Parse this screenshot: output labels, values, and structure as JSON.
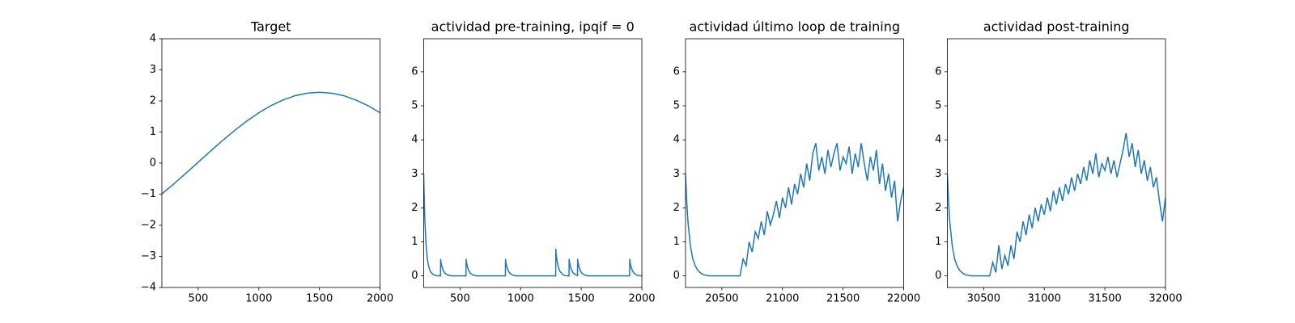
{
  "chart_data": [
    {
      "type": "line",
      "title": "Target",
      "color": "#1f77b4",
      "x": [
        200,
        300,
        400,
        500,
        600,
        700,
        800,
        900,
        1000,
        1100,
        1200,
        1300,
        1400,
        1500,
        1600,
        1700,
        1800,
        1900,
        2000
      ],
      "values": [
        -0.99,
        -0.665,
        -0.32,
        0.03,
        0.38,
        0.725,
        1.05,
        1.35,
        1.62,
        1.85,
        2.03,
        2.17,
        2.25,
        2.28,
        2.25,
        2.17,
        2.03,
        1.85,
        1.62
      ],
      "xlim": [
        200,
        2000
      ],
      "xticks": [
        500,
        1000,
        1500,
        2000
      ],
      "ylim": [
        -4,
        4
      ],
      "yticks": [
        {
          "value": -4,
          "label": "−4"
        },
        {
          "value": -3,
          "label": "−3"
        },
        {
          "value": -2,
          "label": "−2"
        },
        {
          "value": -1,
          "label": "−1"
        },
        0,
        1,
        2,
        3,
        4
      ]
    },
    {
      "type": "line",
      "title": "actividad pre-training, ipqif = 0",
      "color": "#1f77b4",
      "x": [
        200,
        205,
        210,
        220,
        230,
        240,
        250,
        260,
        280,
        300,
        330,
        339,
        340,
        342,
        350,
        360,
        375,
        400,
        430,
        549,
        550,
        552,
        560,
        570,
        585,
        610,
        640,
        874,
        875,
        877,
        885,
        895,
        910,
        935,
        965,
        1289,
        1290,
        1292,
        1300,
        1310,
        1325,
        1350,
        1380,
        1399,
        1400,
        1402,
        1410,
        1420,
        1435,
        1460,
        1469,
        1470,
        1472,
        1480,
        1490,
        1505,
        1530,
        1560,
        1899,
        1900,
        1902,
        1910,
        1920,
        1935,
        1960,
        1990,
        2000
      ],
      "values": [
        3.0,
        2.2,
        1.6,
        0.9,
        0.5,
        0.3,
        0.17,
        0.1,
        0.04,
        0.01,
        0,
        0,
        0.5,
        0.42,
        0.28,
        0.17,
        0.08,
        0.02,
        0,
        0,
        0.5,
        0.42,
        0.28,
        0.17,
        0.08,
        0.02,
        0,
        0,
        0.5,
        0.42,
        0.28,
        0.17,
        0.08,
        0.02,
        0,
        0,
        0.8,
        0.67,
        0.45,
        0.27,
        0.13,
        0.03,
        0,
        0,
        0.5,
        0.42,
        0.28,
        0.17,
        0.08,
        0.02,
        0.01,
        0.5,
        0.42,
        0.28,
        0.17,
        0.08,
        0.02,
        0,
        0,
        0.5,
        0.42,
        0.28,
        0.17,
        0.08,
        0.02,
        0,
        0
      ],
      "xlim": [
        200,
        2000
      ],
      "xticks": [
        500,
        1000,
        1500,
        2000
      ],
      "ylim": [
        -0.34,
        6.97
      ],
      "yticks": [
        0,
        1,
        2,
        3,
        4,
        5,
        6
      ]
    },
    {
      "type": "line",
      "title": "actividad último loop de training",
      "color": "#1f77b4",
      "x": [
        20200,
        20210,
        20220,
        20240,
        20260,
        20280,
        20300,
        20330,
        20360,
        20400,
        20640,
        20650,
        20675,
        20700,
        20725,
        20750,
        20775,
        20800,
        20825,
        20850,
        20875,
        20900,
        20925,
        20950,
        20975,
        21000,
        21025,
        21050,
        21075,
        21100,
        21125,
        21150,
        21175,
        21200,
        21225,
        21250,
        21275,
        21300,
        21325,
        21350,
        21375,
        21400,
        21425,
        21450,
        21475,
        21500,
        21525,
        21550,
        21575,
        21600,
        21625,
        21650,
        21675,
        21700,
        21725,
        21750,
        21775,
        21800,
        21825,
        21850,
        21875,
        21900,
        21925,
        21950,
        21975,
        22000
      ],
      "values": [
        3.0,
        2.2,
        1.6,
        0.9,
        0.5,
        0.3,
        0.17,
        0.07,
        0.02,
        0,
        0,
        0,
        0.5,
        0.3,
        1.0,
        0.7,
        1.3,
        1.1,
        1.6,
        1.2,
        1.9,
        1.5,
        1.8,
        2.2,
        1.7,
        2.3,
        2.0,
        2.6,
        2.1,
        2.7,
        2.4,
        3.0,
        2.6,
        3.3,
        2.8,
        3.6,
        3.9,
        3.1,
        3.5,
        3.0,
        3.7,
        3.2,
        3.6,
        3.9,
        3.1,
        3.5,
        3.3,
        3.8,
        3.0,
        3.6,
        3.2,
        3.9,
        3.3,
        2.8,
        3.5,
        3.1,
        3.7,
        2.7,
        3.3,
        2.5,
        3.0,
        2.3,
        2.8,
        1.6,
        2.2,
        2.6
      ],
      "xlim": [
        20200,
        22000
      ],
      "xticks": [
        20500,
        21000,
        21500,
        22000
      ],
      "ylim": [
        -0.34,
        6.97
      ],
      "yticks": [
        0,
        1,
        2,
        3,
        4,
        5,
        6
      ]
    },
    {
      "type": "line",
      "title": "actividad post-training",
      "color": "#1f77b4",
      "x": [
        30200,
        30210,
        30220,
        30240,
        30260,
        30280,
        30300,
        30330,
        30360,
        30400,
        30540,
        30550,
        30575,
        30600,
        30625,
        30650,
        30675,
        30700,
        30725,
        30750,
        30775,
        30800,
        30825,
        30850,
        30875,
        30900,
        30925,
        30950,
        30975,
        31000,
        31025,
        31050,
        31075,
        31100,
        31125,
        31150,
        31175,
        31200,
        31225,
        31250,
        31275,
        31300,
        31325,
        31350,
        31375,
        31400,
        31425,
        31450,
        31475,
        31500,
        31525,
        31550,
        31575,
        31600,
        31625,
        31650,
        31675,
        31700,
        31725,
        31750,
        31775,
        31800,
        31825,
        31850,
        31875,
        31900,
        31925,
        31950,
        31975,
        32000
      ],
      "values": [
        3.0,
        2.2,
        1.6,
        0.9,
        0.5,
        0.3,
        0.17,
        0.07,
        0.02,
        0,
        0,
        0,
        0.4,
        0.1,
        0.9,
        0.2,
        0.6,
        0.3,
        0.9,
        0.5,
        1.3,
        1.0,
        1.6,
        1.2,
        1.8,
        1.4,
        2.0,
        1.6,
        2.1,
        1.8,
        2.3,
        1.9,
        2.5,
        2.1,
        2.6,
        2.2,
        2.7,
        2.4,
        2.9,
        2.5,
        3.0,
        2.7,
        3.2,
        2.8,
        3.4,
        3.0,
        3.6,
        2.9,
        3.3,
        3.1,
        3.5,
        3.0,
        3.4,
        2.9,
        3.3,
        3.7,
        4.2,
        3.5,
        3.9,
        3.2,
        3.7,
        3.0,
        3.4,
        2.8,
        3.2,
        2.6,
        2.9,
        2.2,
        1.6,
        2.3
      ],
      "xlim": [
        30200,
        32000
      ],
      "xticks": [
        30500,
        31000,
        31500,
        32000
      ],
      "ylim": [
        -0.34,
        6.97
      ],
      "yticks": [
        0,
        1,
        2,
        3,
        4,
        5,
        6
      ]
    }
  ]
}
